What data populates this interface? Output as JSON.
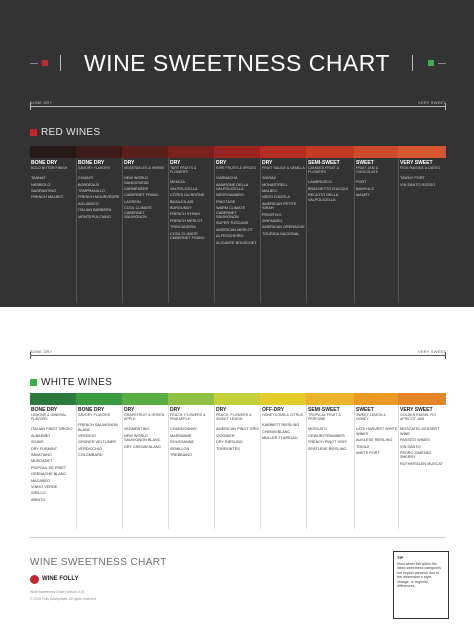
{
  "title": "WINE SWEETNESS CHART",
  "brand_colors": {
    "red_square": "#c0282d",
    "green_square": "#3fae49",
    "dark_bg": "#333333"
  },
  "axis": {
    "left_label": "BONE DRY",
    "right_label": "VERY SWEET"
  },
  "red_section": {
    "title": "RED WINES",
    "bar_colors": [
      "#231815",
      "#3c1a18",
      "#5b1e1c",
      "#7a201e",
      "#9a2520",
      "#b52d22",
      "#c23a26",
      "#cd4a2c",
      "#d4572f"
    ],
    "columns": [
      {
        "name": "BONE DRY",
        "desc": "BOLD BITTER FINISH",
        "wines": [
          "TANNAT",
          "NEBBIOLO",
          "SAGRANTINO",
          "FRENCH MALBEC"
        ]
      },
      {
        "name": "BONE DRY",
        "desc": "SAVORY FLAVORS",
        "wines": [
          "CHIANTI",
          "BORDEAUX",
          "TEMPRANILLO",
          "FRENCH MOURVÈDRE",
          "AGLIANICO",
          "ITALIAN BARBERA",
          "MONTEPULCIANO"
        ]
      },
      {
        "name": "DRY",
        "desc": "VEGETABLES & HERBS",
        "wines": [
          "NEW WORLD SANGIOVESE",
          "CARMÉNÈRE",
          "CABERNET FRANC",
          "LAGREIN",
          "COOL CLIMATE CABERNET SAUVIGNON"
        ]
      },
      {
        "name": "DRY",
        "desc": "TART FRUITS & FLOWERS",
        "wines": [
          "MENCÍA",
          "VALPOLICELLA",
          "CÔTES DU RHÔNE",
          "BEAUJOLAIS",
          "BURGUNDY",
          "FRENCH SYRAH",
          "FRENCH MERLOT",
          "TRINCADEIRA",
          "COOL CLIMATE CABERNET FRANC"
        ]
      },
      {
        "name": "DRY",
        "desc": "RIPE FRUITS & SPICES",
        "wines": [
          "GARNACHA",
          "AMARONE DELLA VALPOLICELLA",
          "NEGROAMARO",
          "PINOTAGE",
          "WARM CLIMATE CABERNET SAUVIGNON",
          "SUPER TUSCANS",
          "AMERICAN MERLOT",
          "ALFROCHEIRO",
          "ALICANTE BOUSCHET"
        ]
      },
      {
        "name": "DRY",
        "desc": "FRUIT SAUCE & VANILLA",
        "wines": [
          "SHIRAZ",
          "MONASTRELL",
          "MALBEC",
          "NERO D'AVOLA",
          "AMERICAN PETITE SIRAH",
          "PRIMITIVO",
          "ZINFANDEL",
          "AMERICAN GRENACHE",
          "TOURIGA NACIONAL"
        ]
      },
      {
        "name": "SEMI-SWEET",
        "desc": "CANDIED FRUIT & FLOWERS",
        "wines": [
          "LAMBRUSCO",
          "BRACHETTO D'ACQUI",
          "RECIOTO DELLA VALPOLICELLA"
        ]
      },
      {
        "name": "SWEET",
        "desc": "FRUIT JAM & CHOCOLATE",
        "wines": [
          "PORT",
          "BANYULS",
          "MAURY"
        ]
      },
      {
        "name": "VERY SWEET",
        "desc": "FIGS RAISINS & DATES",
        "wines": [
          "TAWNY PORT",
          "VIN SANTO ROSSO"
        ]
      }
    ]
  },
  "white_section": {
    "title": "WHITE WINES",
    "bar_colors": [
      "#2d7a3f",
      "#3a9a44",
      "#58ad43",
      "#8dc043",
      "#c3cf3b",
      "#e4cc2f",
      "#ecb42a",
      "#e99a27",
      "#e4852a"
    ],
    "columns": [
      {
        "name": "BONE DRY",
        "desc": "LEMONS & MINERAL FLAVORS",
        "wines": [
          "ITALIAN PINOT GRIGIO",
          "ALBARIÑO",
          "SOAVE",
          "DRY FURMINT",
          "SAVATIANO",
          "MUSCADET",
          "PICPOUL DE PINET",
          "GRENACHE BLANC",
          "MACABEO",
          "VINHO VERDE",
          "SIRILLO",
          "ARINTO"
        ]
      },
      {
        "name": "BONE DRY",
        "desc": "SAVORY FLAVORS",
        "wines": [
          "FRENCH SAUVIGNON BLANC",
          "VERDEJO",
          "GRÜNER VELTLINER",
          "VERDICCHIO",
          "COLOMBARD"
        ]
      },
      {
        "name": "DRY",
        "desc": "GRAPEFRUIT & GREEN APPLE",
        "wines": [
          "VERMENTINO",
          "NEW WORLD SAUVIGNON BLANC",
          "DRY CHENIN BLANC"
        ]
      },
      {
        "name": "DRY",
        "desc": "PEACH, FLOWERS & PINEAPPLE",
        "wines": [
          "CHARDONNAY",
          "MARSANNE",
          "ROUSSANNE",
          "SEMILLON",
          "TREBBIANO"
        ]
      },
      {
        "name": "DRY",
        "desc": "PEACH, FLOWERS & SWEET LEMON",
        "wines": [
          "AMERICAN PINOT GRIS",
          "VIOGNIER",
          "DRY RIESLING",
          "TORRONTÉS"
        ]
      },
      {
        "name": "OFF-DRY",
        "desc": "HONEYCOMB & CITRUS",
        "wines": [
          "KABINETT RIESLING",
          "CHENIN BLANC",
          "MÜLLER-THURGAU"
        ]
      },
      {
        "name": "SEMI-SWEET",
        "desc": "TROPICAL FRUIT & PERFUME",
        "wines": [
          "MOSCATO",
          "GEWÜRZTRAMINER",
          "FRENCH PINOT GRIS",
          "SPÄTLESE RIESLING"
        ]
      },
      {
        "name": "SWEET",
        "desc": "SWEET LEMON & HONEY",
        "wines": [
          "LATE HARVEST WHITE WINES",
          "AUSLESE RIESLING",
          "TOKAJI",
          "WHITE PORT"
        ]
      },
      {
        "name": "VERY SWEET",
        "desc": "GOLDEN RAISIN, FIG APRICOT JAM",
        "wines": [
          "MOSCATEL DESSERT WINE",
          "PASSITO WINES",
          "VIN SANTO",
          "PEDRO XIMÉNEZ SHERRY",
          "RUTHERGLEN MUSCAT"
        ]
      }
    ]
  },
  "footer": {
    "title": "WINE SWEETNESS CHART",
    "brand": "WINE FOLLY",
    "small_lines": [
      "Wine Sweetness Chart (version 3.0)",
      "© 2015 Folly Enterprises. All rights reserved."
    ],
    "tip_title": "TIP",
    "tip_text": "Most wines fall within the listed sweetness categories but expect variance due to the winemaker's style, vintage, or regional differences."
  }
}
